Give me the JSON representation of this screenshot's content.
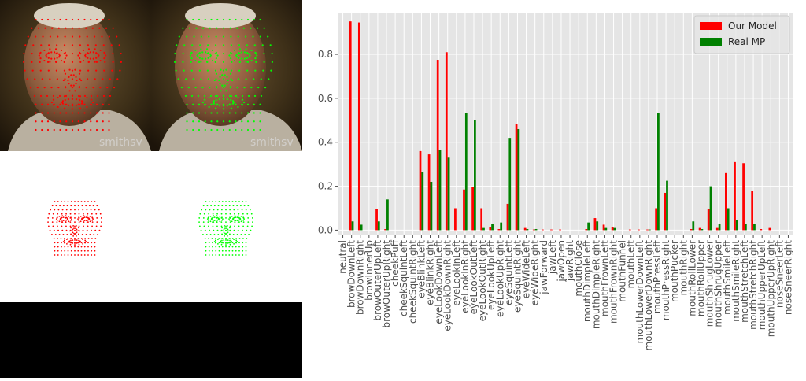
{
  "colors": {
    "our_model": "#ff0000",
    "real_mp": "#008000",
    "mesh_green": "#00ff00",
    "plot_background": "#e5e5e5",
    "grid": "#ffffff"
  },
  "images": {
    "face_photo_overlay_a": "face photo with red landmark mesh",
    "face_photo_overlay_b": "face photo with green landmark mesh",
    "watermark": "smithsv"
  },
  "chart_data": {
    "type": "bar",
    "categories": [
      "neutral",
      "browDownLeft",
      "browDownRight",
      "browInnerUp",
      "browOuterUpLeft",
      "browOuterUpRight",
      "cheekPuff",
      "cheekSquintLeft",
      "cheekSquintRight",
      "eyeBlinkLeft",
      "eyeBlinkRight",
      "eyeLookDownLeft",
      "eyeLookDownRight",
      "eyeLookInLeft",
      "eyeLookInRight",
      "eyeLookOutLeft",
      "eyeLookOutRight",
      "eyeLookUpLeft",
      "eyeLookUpRight",
      "eyeSquintLeft",
      "eyeSquintRight",
      "eyeWideLeft",
      "eyeWideRight",
      "jawForward",
      "jawLeft",
      "jawOpen",
      "jawRight",
      "mouthClose",
      "mouthDimpleLeft",
      "mouthDimpleRight",
      "mouthFrownLeft",
      "mouthFrownRight",
      "mouthFunnel",
      "mouthLeft",
      "mouthLowerDownLeft",
      "mouthLowerDownRight",
      "mouthPressLeft",
      "mouthPressRight",
      "mouthPucker",
      "mouthRight",
      "mouthRollLower",
      "mouthRollUpper",
      "mouthShrugLower",
      "mouthShrugUpper",
      "mouthSmileLeft",
      "mouthSmileRight",
      "mouthStretchLeft",
      "mouthStretchRight",
      "mouthUpperUpLeft",
      "mouthUpperUpRight",
      "noseSneerLeft",
      "noseSneerRight"
    ],
    "series": [
      {
        "name": "Our Model",
        "values": [
          0.0,
          0.95,
          0.945,
          0.0,
          0.095,
          0.005,
          0.0,
          0.0,
          0.0,
          0.36,
          0.345,
          0.775,
          0.81,
          0.1,
          0.185,
          0.195,
          0.1,
          0.015,
          0.005,
          0.12,
          0.485,
          0.01,
          0.003,
          0.003,
          0.003,
          0.003,
          0.0,
          0.0,
          0.005,
          0.055,
          0.025,
          0.015,
          0.0,
          0.003,
          0.003,
          0.003,
          0.1,
          0.17,
          0.0,
          0.0,
          0.005,
          0.01,
          0.095,
          0.01,
          0.26,
          0.31,
          0.305,
          0.18,
          0.005,
          0.01,
          0.0,
          0.0
        ]
      },
      {
        "name": "Real MP",
        "values": [
          0.0,
          0.04,
          0.025,
          0.0,
          0.04,
          0.14,
          0.0,
          0.0,
          0.0,
          0.265,
          0.22,
          0.365,
          0.33,
          0.0,
          0.535,
          0.5,
          0.01,
          0.03,
          0.035,
          0.42,
          0.46,
          0.005,
          0.005,
          0.0,
          0.0,
          0.0,
          0.0,
          0.0,
          0.035,
          0.04,
          0.01,
          0.01,
          0.0,
          0.0,
          0.0,
          0.003,
          0.535,
          0.225,
          0.0,
          0.0,
          0.04,
          0.005,
          0.2,
          0.03,
          0.1,
          0.045,
          0.03,
          0.03,
          0.0,
          0.0,
          0.0,
          0.0
        ]
      }
    ],
    "ylim": [
      -0.02,
      0.99
    ],
    "yticks": [
      0.0,
      0.2,
      0.4,
      0.6,
      0.8
    ],
    "ytick_labels": [
      "0.0",
      "0.2",
      "0.4",
      "0.6",
      "0.8"
    ],
    "grid": true,
    "legend_position": "top-right"
  }
}
